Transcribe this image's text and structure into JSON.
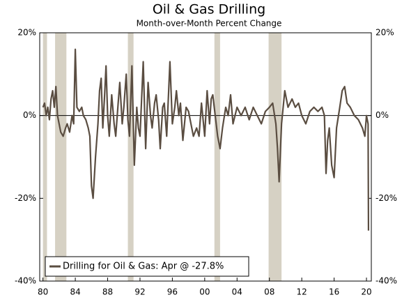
{
  "chart_data": {
    "type": "line",
    "title": "Oil & Gas Drilling",
    "subtitle": "Month-over-Month Percent Change",
    "x": [
      1980.0,
      1980.2,
      1980.4,
      1980.6,
      1980.8,
      1981.0,
      1981.2,
      1981.4,
      1981.6,
      1981.8,
      1982.0,
      1982.2,
      1982.5,
      1982.8,
      1983.0,
      1983.3,
      1983.6,
      1983.8,
      1984.0,
      1984.2,
      1984.5,
      1984.8,
      1985.0,
      1985.3,
      1985.6,
      1985.8,
      1986.0,
      1986.2,
      1986.5,
      1986.8,
      1987.0,
      1987.2,
      1987.4,
      1987.6,
      1987.8,
      1988.0,
      1988.2,
      1988.5,
      1988.8,
      1989.0,
      1989.3,
      1989.5,
      1989.8,
      1990.0,
      1990.3,
      1990.5,
      1990.7,
      1991.0,
      1991.3,
      1991.6,
      1991.8,
      1992.0,
      1992.2,
      1992.4,
      1992.7,
      1993.0,
      1993.3,
      1993.5,
      1993.8,
      1994.0,
      1994.3,
      1994.5,
      1994.8,
      1995.0,
      1995.3,
      1995.7,
      1996.0,
      1996.3,
      1996.5,
      1996.8,
      1997.0,
      1997.3,
      1997.7,
      1998.0,
      1998.3,
      1998.6,
      1999.0,
      1999.3,
      1999.6,
      2000.0,
      2000.3,
      2000.6,
      2000.8,
      2001.0,
      2001.3,
      2001.6,
      2001.9,
      2002.2,
      2002.6,
      2002.9,
      2003.2,
      2003.5,
      2004.0,
      2004.5,
      2005.0,
      2005.5,
      2006.0,
      2006.5,
      2007.0,
      2007.5,
      2008.0,
      2008.4,
      2008.8,
      2009.0,
      2009.2,
      2009.5,
      2009.9,
      2010.3,
      2010.8,
      2011.2,
      2011.6,
      2012.0,
      2012.5,
      2013.0,
      2013.5,
      2014.0,
      2014.5,
      2014.8,
      2015.0,
      2015.2,
      2015.4,
      2015.7,
      2016.0,
      2016.3,
      2016.7,
      2017.0,
      2017.3,
      2017.6,
      2018.0,
      2018.5,
      2019.0,
      2019.5,
      2019.8,
      2020.0,
      2020.2,
      2020.25
    ],
    "series": [
      {
        "name": "Drilling for Oil & Gas: Apr @ -27.8%",
        "color": "#5a4d41",
        "values": [
          2,
          3,
          0,
          2,
          -1,
          4,
          6,
          2,
          7,
          0,
          -2,
          -4,
          -5,
          -3,
          -2,
          -4,
          0,
          -2,
          16,
          2,
          1,
          2,
          0,
          -1,
          -3,
          -5,
          -17,
          -20,
          -10,
          -2,
          6,
          9,
          -3,
          4,
          12,
          0,
          -5,
          5,
          -2,
          -5,
          3,
          8,
          -2,
          2,
          10,
          -1,
          -5,
          12,
          -12,
          2,
          -3,
          -5,
          4,
          13,
          -8,
          8,
          0,
          -3,
          3,
          5,
          -1,
          -8,
          2,
          3,
          -5,
          13,
          -2,
          2,
          6,
          0,
          3,
          -6,
          2,
          1,
          -2,
          -5,
          -3,
          -5,
          3,
          -5,
          6,
          -2,
          4,
          5,
          0,
          -5,
          -8,
          -3,
          2,
          0,
          5,
          -2,
          2,
          0,
          2,
          -1,
          2,
          0,
          -2,
          1,
          2,
          3,
          -2,
          -8,
          -16,
          -2,
          6,
          2,
          4,
          2,
          3,
          0,
          -2,
          1,
          2,
          1,
          2,
          0,
          -14,
          -6,
          -3,
          -12,
          -15,
          -3,
          2,
          6,
          7,
          3,
          2,
          0,
          -1,
          -3,
          -5,
          0,
          -2,
          -27.8
        ]
      }
    ],
    "recessions": [
      [
        1980.0,
        1980.5
      ],
      [
        1981.5,
        1982.9
      ],
      [
        1990.5,
        1991.2
      ],
      [
        2001.2,
        2001.9
      ],
      [
        2007.9,
        2009.5
      ]
    ],
    "recession_color": "#d6d1c4",
    "xlim": [
      1979.6,
      2020.6
    ],
    "xticks": [
      {
        "value": 1980,
        "label": "80"
      },
      {
        "value": 1984,
        "label": "84"
      },
      {
        "value": 1988,
        "label": "88"
      },
      {
        "value": 1992,
        "label": "92"
      },
      {
        "value": 1996,
        "label": "96"
      },
      {
        "value": 2000,
        "label": "00"
      },
      {
        "value": 2004,
        "label": "04"
      },
      {
        "value": 2008,
        "label": "08"
      },
      {
        "value": 2012,
        "label": "12"
      },
      {
        "value": 2016,
        "label": "16"
      },
      {
        "value": 2020,
        "label": "20"
      }
    ],
    "ylim": [
      -40,
      20
    ],
    "yticks": [
      {
        "value": 20,
        "label": "20%"
      },
      {
        "value": 0,
        "label": "0%"
      },
      {
        "value": -20,
        "label": "-20%"
      },
      {
        "value": -40,
        "label": "-40%"
      }
    ],
    "zero_line": true,
    "legend": "lower left"
  }
}
